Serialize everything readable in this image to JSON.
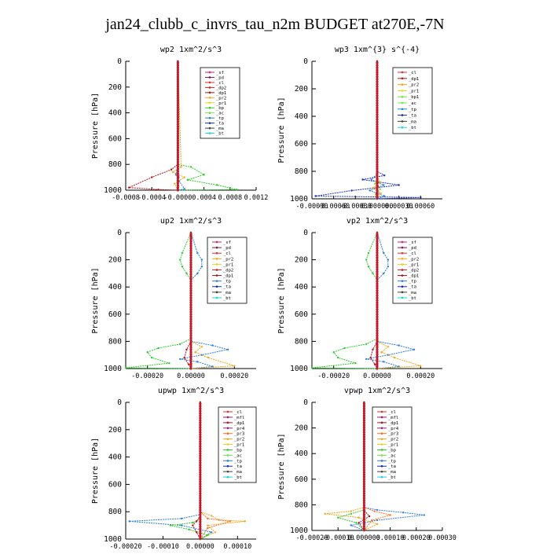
{
  "page_title": "jan24_clubb_c_invrs_tau_n2m  BUDGET at270E,-7N",
  "colors": {
    "_sf": "#d0207a",
    "_pd": "#7b1a5a",
    "_cl": "#e0302a",
    "_dp2": "#cc1f2a",
    "_dp1": "#b0131a",
    "_pr2": "#f3a51c",
    "_pr1": "#e8d21c",
    "_pr3": "#ff6f1f",
    "_pr4": "#8a2a7a",
    "_mfl": "#9b1870",
    "_bp": "#2ecc2e",
    "_bp1": "#7ae04a",
    "_ac": "#78e046",
    "_tp": "#2b7fd9",
    "_ta": "#1a2fb0",
    "_ma": "#404040",
    "_bt": "#17d7d7"
  },
  "chart_data": [
    {
      "type": "line",
      "title": "wp2  1xm^2/s^3",
      "ylabel": "Pressure [hPa]",
      "ylim": [
        1000,
        0
      ],
      "yticks": [
        0,
        200,
        400,
        600,
        800,
        1000
      ],
      "xlim": [
        -0.0008,
        0.0012
      ],
      "xticks": [
        "-0.0008",
        "-0.0004",
        "-0.0000",
        "0.0004",
        "0.0008",
        "0.0012"
      ],
      "legend": [
        "_sf",
        "_pd",
        "_cl",
        "_dp2",
        "_dp1",
        "_pr2",
        "_pr1",
        "_bp",
        "_ac",
        "_tp",
        "_ta",
        "_ma",
        "_bt"
      ],
      "legend_position": "top-right",
      "series": [
        {
          "name": "_dp1",
          "x": [
            0,
            0,
            -0.0001,
            -0.0004,
            -0.00075,
            -0.0003,
            0
          ],
          "y": [
            0,
            800,
            840,
            900,
            980,
            995,
            1000
          ]
        },
        {
          "name": "_pr2",
          "x": [
            0,
            5e-05,
            -8e-05,
            0.0001,
            -5e-05,
            0
          ],
          "y": [
            0,
            820,
            860,
            900,
            950,
            1000
          ]
        },
        {
          "name": "_bp",
          "x": [
            0,
            0,
            0.0002,
            0.0004,
            0.00015,
            0.0006,
            0.0009,
            0
          ],
          "y": [
            0,
            800,
            820,
            880,
            920,
            960,
            995,
            1000
          ]
        },
        {
          "name": "_tp",
          "x": [
            0,
            0,
            -3e-05,
            2e-05,
            0.0001,
            0
          ],
          "y": [
            0,
            800,
            880,
            930,
            990,
            1000
          ]
        },
        {
          "name": "_pd",
          "x": [
            0,
            0,
            1e-05,
            0
          ],
          "y": [
            0,
            800,
            900,
            1000
          ]
        }
      ]
    },
    {
      "type": "line",
      "title": "wp3  1xm^{3} s^{-4}",
      "ylabel": "Pressure [hPa]",
      "ylim": [
        1000,
        0
      ],
      "yticks": [
        0,
        200,
        400,
        600,
        800,
        1000
      ],
      "xlim": [
        -0.0009,
        0.0009
      ],
      "xticks": [
        "-0.00090",
        "-0.00060",
        "-0.00030",
        "0.000000",
        "0.00030",
        "0.00060"
      ],
      "legend": [
        "_cl",
        "_dp1",
        "_pr2",
        "_pr1",
        "_bp1",
        "_ac",
        "_tp",
        "_ta",
        "_ma",
        "_bt"
      ],
      "legend_position": "top-right",
      "series": [
        {
          "name": "_ta",
          "x": [
            0,
            0,
            0.0001,
            -0.0002,
            0.0003,
            -0.00035,
            -0.00085,
            0.0006,
            0
          ],
          "y": [
            0,
            800,
            830,
            860,
            900,
            940,
            980,
            990,
            1000
          ]
        },
        {
          "name": "_tp",
          "x": [
            0,
            0,
            -8e-05,
            9e-05,
            -0.0001,
            0.0001,
            0
          ],
          "y": [
            0,
            820,
            860,
            900,
            940,
            980,
            1000
          ]
        },
        {
          "name": "_pr2",
          "x": [
            0,
            0,
            4e-05,
            -5e-05,
            5e-05,
            0
          ],
          "y": [
            0,
            840,
            880,
            920,
            960,
            1000
          ]
        },
        {
          "name": "_bp1",
          "x": [
            0,
            0,
            -3e-05,
            4e-05,
            -2e-05,
            0
          ],
          "y": [
            0,
            850,
            890,
            930,
            970,
            1000
          ]
        },
        {
          "name": "_dp1",
          "x": [
            0,
            0,
            1e-05,
            -1e-05,
            0
          ],
          "y": [
            0,
            860,
            910,
            960,
            1000
          ]
        }
      ]
    },
    {
      "type": "line",
      "title": "up2  1xm^2/s^3",
      "ylabel": "Pressure [hPa]",
      "ylim": [
        1000,
        0
      ],
      "yticks": [
        0,
        200,
        400,
        600,
        800,
        1000
      ],
      "xlim": [
        -0.0003,
        0.0003
      ],
      "xticks": [
        "-0.00020",
        "0.00000",
        "0.00020"
      ],
      "legend": [
        "_sf",
        "_pd",
        "_cl",
        "_pr2",
        "_pr1",
        "_dp2",
        "_dp1",
        "_tp",
        "_ta",
        "_ma",
        "_bt"
      ],
      "legend_position": "top-right",
      "series": [
        {
          "name": "_tp",
          "x": [
            0,
            3e-05,
            5e-05,
            5e-05,
            3e-05,
            0,
            0,
            0.0001,
            0.00017,
            5e-05,
            -5e-05,
            3e-05,
            0.0001,
            0
          ],
          "y": [
            0,
            150,
            200,
            250,
            300,
            350,
            800,
            830,
            860,
            900,
            930,
            950,
            985,
            1000
          ]
        },
        {
          "name": "_bp",
          "x": [
            0,
            -4e-05,
            -5e-05,
            -4e-05,
            -2e-05,
            0,
            0,
            -5e-05,
            -0.00015,
            -0.0002,
            -0.00018,
            -0.0001,
            -0.0003,
            0
          ],
          "y": [
            0,
            150,
            200,
            250,
            300,
            350,
            780,
            820,
            850,
            880,
            920,
            960,
            995,
            1000
          ]
        },
        {
          "name": "_pr2",
          "x": [
            0,
            0,
            5e-05,
            2e-05,
            8e-05,
            0.0002,
            0
          ],
          "y": [
            0,
            800,
            840,
            880,
            920,
            980,
            1000
          ]
        },
        {
          "name": "_dp1",
          "x": [
            0,
            0,
            -2e-05,
            -3e-05,
            -1e-05,
            0
          ],
          "y": [
            0,
            800,
            860,
            920,
            970,
            1000
          ]
        }
      ]
    },
    {
      "type": "line",
      "title": "vp2  1xm^2/s^3",
      "ylabel": "Pressure [hPa]",
      "ylim": [
        1000,
        0
      ],
      "yticks": [
        0,
        200,
        400,
        600,
        800,
        1000
      ],
      "xlim": [
        -0.0003,
        0.0003
      ],
      "xticks": [
        "-0.00020",
        "0.00000",
        "0.00020"
      ],
      "legend": [
        "_sf",
        "_pd",
        "_cl",
        "_pr2",
        "_pr1",
        "_dp2",
        "_dp1",
        "_tp",
        "_ta",
        "_ma",
        "_bt"
      ],
      "legend_position": "top-right",
      "series": [
        {
          "name": "_tp",
          "x": [
            0,
            3e-05,
            5e-05,
            5e-05,
            3e-05,
            0,
            0,
            0.0001,
            0.00017,
            5e-05,
            -5e-05,
            3e-05,
            0.0001,
            0
          ],
          "y": [
            0,
            150,
            200,
            250,
            300,
            350,
            800,
            830,
            860,
            900,
            930,
            950,
            985,
            1000
          ]
        },
        {
          "name": "_bp",
          "x": [
            0,
            -4e-05,
            -5e-05,
            -4e-05,
            -2e-05,
            0,
            0,
            -5e-05,
            -0.00015,
            -0.0002,
            -0.00018,
            -0.0001,
            -0.0003,
            0
          ],
          "y": [
            0,
            150,
            200,
            250,
            300,
            350,
            780,
            820,
            850,
            880,
            920,
            960,
            995,
            1000
          ]
        },
        {
          "name": "_pr2",
          "x": [
            0,
            0,
            5e-05,
            2e-05,
            8e-05,
            0.0002,
            0
          ],
          "y": [
            0,
            800,
            840,
            880,
            920,
            980,
            1000
          ]
        },
        {
          "name": "_dp1",
          "x": [
            0,
            0,
            -2e-05,
            -3e-05,
            -1e-05,
            0
          ],
          "y": [
            0,
            800,
            860,
            920,
            970,
            1000
          ]
        }
      ]
    },
    {
      "type": "line",
      "title": "upwp  1xm^2/s^3",
      "ylabel": "Pressure [hPa]",
      "ylim": [
        1000,
        0
      ],
      "yticks": [
        0,
        200,
        400,
        600,
        800,
        1000
      ],
      "xlim": [
        -0.0002,
        0.00015
      ],
      "xticks": [
        "-0.00020",
        "-0.00010",
        "0.00000",
        "0.00010"
      ],
      "legend": [
        "_cl",
        "_mfl",
        "_dp1",
        "_pr4",
        "_pr3",
        "_pr2",
        "_pr1",
        "_bp",
        "_ac",
        "_tp",
        "_ta",
        "_ma",
        "_bt"
      ],
      "legend_position": "top-right",
      "series": [
        {
          "name": "_tp",
          "x": [
            0,
            0,
            -5e-05,
            -0.00019,
            -5e-05,
            3e-05,
            0
          ],
          "y": [
            0,
            820,
            850,
            870,
            900,
            950,
            1000
          ]
        },
        {
          "name": "_pr2",
          "x": [
            0,
            0,
            3e-05,
            5e-05,
            0.00012,
            2e-05,
            4e-05,
            0
          ],
          "y": [
            0,
            800,
            830,
            860,
            870,
            900,
            950,
            1000
          ]
        },
        {
          "name": "_pr3",
          "x": [
            0,
            0,
            2e-05,
            8e-05,
            2e-05,
            0
          ],
          "y": [
            0,
            800,
            850,
            870,
            920,
            1000
          ]
        },
        {
          "name": "_bp",
          "x": [
            0,
            0,
            -2e-05,
            -8e-05,
            -3e-05,
            2e-05,
            0
          ],
          "y": [
            0,
            850,
            880,
            900,
            930,
            970,
            1000
          ]
        },
        {
          "name": "_dp1",
          "x": [
            0,
            0,
            -1e-05,
            -2e-05,
            -1e-05,
            0
          ],
          "y": [
            0,
            830,
            870,
            900,
            950,
            1000
          ]
        }
      ]
    },
    {
      "type": "line",
      "title": "vpwp  1xm^2/s^3",
      "ylabel": "Pressure [hPa]",
      "ylim": [
        1000,
        0
      ],
      "yticks": [
        0,
        200,
        400,
        600,
        800,
        1000
      ],
      "xlim": [
        -0.0002,
        0.0003
      ],
      "xticks": [
        "-0.00020",
        "-0.00010",
        "0.000000",
        "0.00010",
        "0.00020",
        "0.00030"
      ],
      "legend": [
        "_cl",
        "_mfl",
        "_dp1",
        "_pr4",
        "_pr3",
        "_pr2",
        "_pr1",
        "_bp",
        "_ac",
        "_tp",
        "_ta",
        "_ma",
        "_bt"
      ],
      "legend_position": "top-right",
      "series": [
        {
          "name": "_tp",
          "x": [
            0,
            0,
            5e-05,
            0.00015,
            0.00023,
            5e-05,
            -5e-05,
            0
          ],
          "y": [
            0,
            820,
            840,
            860,
            880,
            920,
            960,
            1000
          ]
        },
        {
          "name": "_pr2",
          "x": [
            0,
            0,
            -5e-05,
            -0.00015,
            -2e-05,
            5e-05,
            0
          ],
          "y": [
            0,
            820,
            850,
            870,
            900,
            950,
            1000
          ]
        },
        {
          "name": "_pr3",
          "x": [
            0,
            0,
            4e-05,
            0.0001,
            3e-05,
            0
          ],
          "y": [
            0,
            820,
            850,
            880,
            920,
            1000
          ]
        },
        {
          "name": "_bp",
          "x": [
            0,
            0,
            -5e-05,
            -0.0001,
            -3e-05,
            0
          ],
          "y": [
            0,
            840,
            870,
            900,
            940,
            1000
          ]
        },
        {
          "name": "_dp1",
          "x": [
            0,
            0,
            2e-05,
            -2e-05,
            0
          ],
          "y": [
            0,
            840,
            890,
            940,
            1000
          ]
        }
      ]
    }
  ]
}
